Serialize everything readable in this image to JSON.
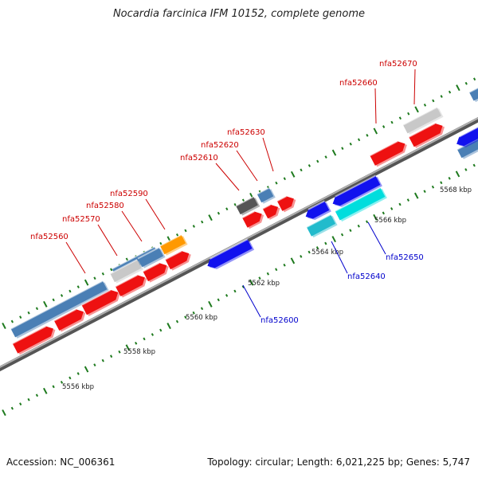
{
  "title": "Nocardia farcinica IFM 10152, complete genome",
  "footer": {
    "accession": "Accession: NC_006361",
    "summary": "Topology: circular; Length: 6,021,225 bp; Genes: 5,747"
  },
  "colors": {
    "background": "#ffffff",
    "backbone": "#8c8c8c",
    "tick": "#1e7a1e",
    "label_forward": "#cc0000",
    "label_reverse": "#0000cc",
    "leader_forward": "#cc0000",
    "leader_reverse": "#0000cc"
  },
  "scale_labels": [
    "5556 kbp",
    "5558 kbp",
    "5560 kbp",
    "5562 kbp",
    "5564 kbp",
    "5566 kbp",
    "5568 kbp"
  ],
  "gene_labels_forward": [
    "nfa52560",
    "nfa52570",
    "nfa52580",
    "nfa52590",
    "nfa52610",
    "nfa52620",
    "nfa52630",
    "nfa52660",
    "nfa52670"
  ],
  "gene_labels_reverse": [
    "nfa52600",
    "nfa52640",
    "nfa52650"
  ],
  "features": [
    {
      "strand": "outer",
      "color": "#4a7fb5"
    },
    {
      "strand": "outer",
      "color": "#4a7fb5"
    },
    {
      "strand": "outer",
      "color": "#c8c8c8"
    },
    {
      "strand": "outer",
      "color": "#4a7fb5"
    },
    {
      "strand": "outer",
      "color": "#ff9900"
    },
    {
      "strand": "outer",
      "color": "#555555"
    },
    {
      "strand": "outer",
      "color": "#4a7fb5"
    },
    {
      "strand": "outer",
      "color": "#c8c8c8"
    },
    {
      "strand": "outer",
      "color": "#4a7fb5"
    },
    {
      "strand": "forward",
      "color": "#ee1111"
    },
    {
      "strand": "forward",
      "color": "#ee1111"
    },
    {
      "strand": "forward",
      "color": "#ee1111"
    },
    {
      "strand": "forward",
      "color": "#ee1111"
    },
    {
      "strand": "forward",
      "color": "#ee1111"
    },
    {
      "strand": "forward",
      "color": "#ee1111"
    },
    {
      "strand": "forward",
      "color": "#ee1111"
    },
    {
      "strand": "forward",
      "color": "#ee1111"
    },
    {
      "strand": "forward",
      "color": "#ee1111"
    },
    {
      "strand": "forward",
      "color": "#ee1111"
    },
    {
      "strand": "forward",
      "color": "#ee1111"
    },
    {
      "strand": "reverse",
      "color": "#1111ee"
    },
    {
      "strand": "reverse",
      "color": "#1111ee"
    },
    {
      "strand": "reverse",
      "color": "#1111ee"
    },
    {
      "strand": "reverse",
      "color": "#1111ee"
    },
    {
      "strand": "reverse",
      "color": "#00dddd"
    },
    {
      "strand": "reverse",
      "color": "#22bbcc"
    },
    {
      "strand": "outer",
      "color": "#4a7fb5"
    }
  ]
}
